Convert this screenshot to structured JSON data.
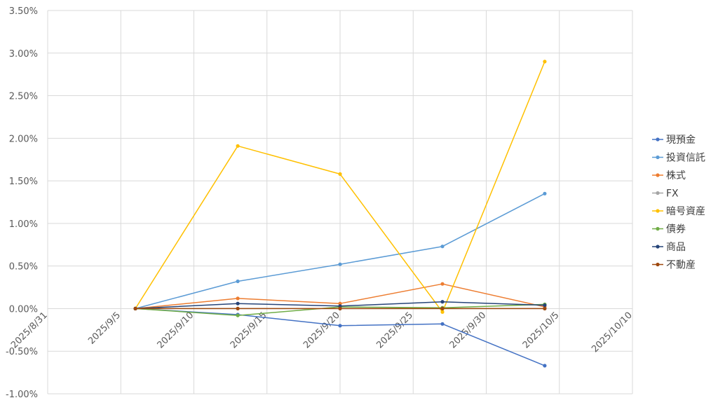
{
  "chart_data": {
    "type": "line",
    "title": "",
    "xlabel": "",
    "ylabel": "",
    "x_dates": [
      "2025/9/6",
      "2025/9/13",
      "2025/9/20",
      "2025/9/27",
      "2025/10/4"
    ],
    "xlim": [
      "2025/8/31",
      "2025/10/10"
    ],
    "x_ticks": [
      "2025/8/31",
      "2025/9/5",
      "2025/9/10",
      "2025/9/15",
      "2025/9/20",
      "2025/9/25",
      "2025/9/30",
      "2025/10/5",
      "2025/10/10"
    ],
    "ylim": [
      -1.0,
      3.5
    ],
    "y_ticks": [
      "-1.00%",
      "-0.50%",
      "0.00%",
      "0.50%",
      "1.00%",
      "1.50%",
      "2.00%",
      "2.50%",
      "3.00%",
      "3.50%"
    ],
    "grid": true,
    "legend_position": "right",
    "series": [
      {
        "name": "現預金",
        "color": "#4472C4",
        "values": [
          0.0,
          -0.07,
          -0.2,
          -0.18,
          -0.67
        ]
      },
      {
        "name": "投資信託",
        "color": "#5B9BD5",
        "values": [
          0.0,
          0.32,
          0.52,
          0.73,
          1.35
        ]
      },
      {
        "name": "株式",
        "color": "#ED7D31",
        "values": [
          0.0,
          0.12,
          0.06,
          0.29,
          0.02
        ]
      },
      {
        "name": "FX",
        "color": "#A5A5A5",
        "values": [
          0.0,
          0.0,
          0.0,
          0.0,
          0.0
        ]
      },
      {
        "name": "暗号資産",
        "color": "#FFC000",
        "values": [
          0.0,
          1.91,
          1.58,
          -0.04,
          2.9
        ]
      },
      {
        "name": "債券",
        "color": "#70AD47",
        "values": [
          0.0,
          -0.08,
          0.02,
          0.01,
          0.05
        ]
      },
      {
        "name": "商品",
        "color": "#264478",
        "values": [
          0.0,
          0.06,
          0.03,
          0.08,
          0.04
        ]
      },
      {
        "name": "不動産",
        "color": "#9E480E",
        "values": [
          0.0,
          0.0,
          0.0,
          0.0,
          0.0
        ]
      }
    ]
  }
}
